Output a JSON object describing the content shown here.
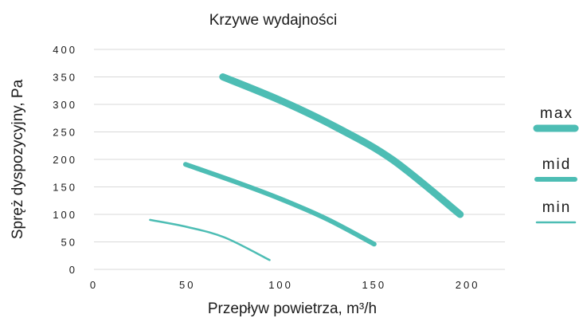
{
  "chart_data": {
    "type": "line",
    "title": "Krzywe wydajności",
    "xlabel": "Przepływ powietrza, m³/h",
    "ylabel": "Spręż dyspozycyjny, Pa",
    "xlim": [
      0,
      220
    ],
    "ylim": [
      0,
      400
    ],
    "x_ticks": [
      0,
      50,
      100,
      150,
      200
    ],
    "y_ticks": [
      0,
      50,
      100,
      150,
      200,
      250,
      300,
      350,
      400
    ],
    "grid": "horizontal",
    "legend_position": "right",
    "line_color": "#4dbdb4",
    "series": [
      {
        "name": "max",
        "weight": "thick",
        "points": [
          [
            69,
            350
          ],
          [
            100,
            307
          ],
          [
            130,
            258
          ],
          [
            160,
            199
          ],
          [
            196,
            100
          ]
        ]
      },
      {
        "name": "mid",
        "weight": "medium",
        "points": [
          [
            49,
            191
          ],
          [
            75,
            160
          ],
          [
            100,
            128
          ],
          [
            125,
            91
          ],
          [
            150,
            46
          ]
        ]
      },
      {
        "name": "min",
        "weight": "thin",
        "points": [
          [
            30,
            90
          ],
          [
            50,
            77
          ],
          [
            70,
            58
          ],
          [
            94,
            17
          ]
        ]
      }
    ]
  }
}
